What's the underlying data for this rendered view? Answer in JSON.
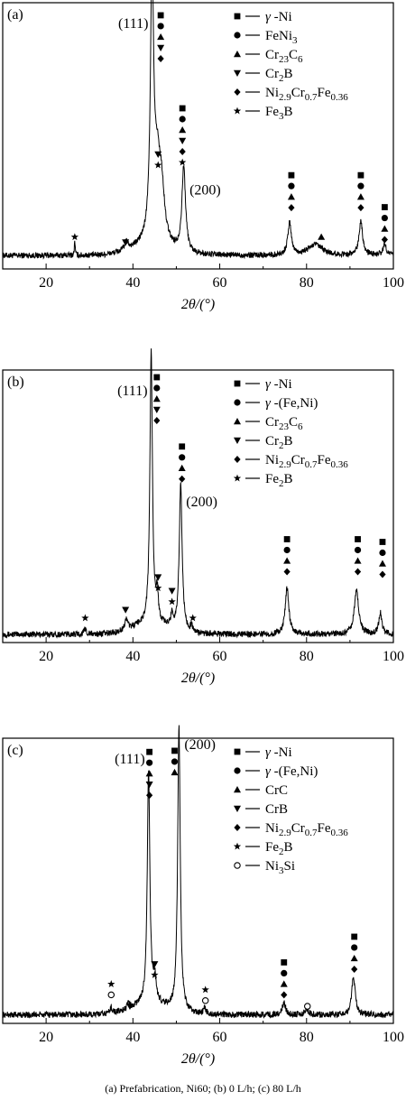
{
  "caption": "(a)  Prefabrication,  Ni60; (b) 0  L/h; (c) 80 L/h",
  "chart_data": [
    {
      "panel_label": "(a)",
      "type": "line",
      "xlabel": "2θ/(°)",
      "xlim": [
        10,
        100
      ],
      "xticks": [
        20,
        40,
        60,
        80,
        100
      ],
      "y_ticks_shown": false,
      "legend_position": "top-right",
      "legend": [
        {
          "marker": "filled-square",
          "label": "γ -Ni"
        },
        {
          "marker": "filled-circle",
          "label": "FeNi3"
        },
        {
          "marker": "filled-triangle-up",
          "label": "Cr23C6"
        },
        {
          "marker": "filled-triangle-down",
          "label": "Cr2B"
        },
        {
          "marker": "filled-diamond",
          "label": "Ni2.9Cr0.7Fe0.36"
        },
        {
          "marker": "filled-star",
          "label": "Fe3B"
        }
      ],
      "peak_labels": [
        {
          "text": "(111)",
          "x": 44.4
        },
        {
          "text": "(200)",
          "x": 51.8
        }
      ],
      "baseline": 0.05,
      "peaks": [
        {
          "x": 26.6,
          "h": 0.06,
          "w": 0.1
        },
        {
          "x": 38.5,
          "h": 0.03,
          "w": 0.5
        },
        {
          "x": 44.4,
          "h": 1.0,
          "w": 0.45
        },
        {
          "x": 45.6,
          "h": 0.25,
          "w": 0.8
        },
        {
          "x": 46.6,
          "h": 0.18,
          "w": 0.8
        },
        {
          "x": 51.7,
          "h": 0.32,
          "w": 0.5
        },
        {
          "x": 76.1,
          "h": 0.12,
          "w": 0.5
        },
        {
          "x": 82.0,
          "h": 0.04,
          "w": 2.0
        },
        {
          "x": 92.5,
          "h": 0.13,
          "w": 0.5
        },
        {
          "x": 98.0,
          "h": 0.04,
          "w": 0.5
        }
      ],
      "markers": [
        {
          "x": 26.6,
          "y": 0.12,
          "symbols": [
            "filled-star"
          ]
        },
        {
          "x": 38.3,
          "y": 0.1,
          "symbols": [
            "filled-triangle-down"
          ]
        },
        {
          "x": 46.4,
          "y": 0.79,
          "symbols": [
            "filled-square",
            "filled-circle",
            "filled-triangle-up",
            "filled-triangle-down",
            "filled-diamond"
          ]
        },
        {
          "x": 45.8,
          "y": 0.39,
          "symbols": [
            "filled-triangle-down",
            "filled-star"
          ]
        },
        {
          "x": 51.4,
          "y": 0.4,
          "symbols": [
            "filled-square",
            "filled-circle",
            "filled-triangle-up",
            "filled-triangle-down",
            "filled-diamond",
            "filled-star"
          ]
        },
        {
          "x": 76.5,
          "y": 0.23,
          "symbols": [
            "filled-square",
            "filled-circle",
            "filled-triangle-up",
            "filled-diamond"
          ]
        },
        {
          "x": 83.4,
          "y": 0.12,
          "symbols": [
            "filled-triangle-up"
          ]
        },
        {
          "x": 92.5,
          "y": 0.23,
          "symbols": [
            "filled-square",
            "filled-circle",
            "filled-triangle-up",
            "filled-diamond"
          ]
        },
        {
          "x": 98.0,
          "y": 0.11,
          "symbols": [
            "filled-square",
            "filled-circle",
            "filled-triangle-up",
            "filled-diamond"
          ]
        }
      ]
    },
    {
      "panel_label": "(b)",
      "type": "line",
      "xlabel": "2θ/(°)",
      "xlim": [
        10,
        100
      ],
      "xticks": [
        20,
        40,
        60,
        80,
        100
      ],
      "y_ticks_shown": false,
      "legend_position": "top-right",
      "legend": [
        {
          "marker": "filled-square",
          "label": "γ -Ni"
        },
        {
          "marker": "filled-circle",
          "label": "γ -(Fe,Ni)"
        },
        {
          "marker": "filled-triangle-up",
          "label": "Cr23C6"
        },
        {
          "marker": "filled-triangle-down",
          "label": "Cr2B"
        },
        {
          "marker": "filled-diamond",
          "label": "Ni2.9Cr0.7Fe0.36"
        },
        {
          "marker": "filled-star",
          "label": "Fe2B"
        }
      ],
      "peak_labels": [
        {
          "text": "(111)",
          "x": 44.2
        },
        {
          "text": "(200)",
          "x": 51.0
        }
      ],
      "baseline": 0.03,
      "peaks": [
        {
          "x": 29.0,
          "h": 0.02,
          "w": 0.3
        },
        {
          "x": 38.5,
          "h": 0.04,
          "w": 0.4
        },
        {
          "x": 44.2,
          "h": 1.0,
          "w": 0.35
        },
        {
          "x": 45.6,
          "h": 0.1,
          "w": 0.3
        },
        {
          "x": 49.0,
          "h": 0.05,
          "w": 0.3
        },
        {
          "x": 51.0,
          "h": 0.54,
          "w": 0.4
        },
        {
          "x": 53.5,
          "h": 0.02,
          "w": 0.3
        },
        {
          "x": 75.5,
          "h": 0.17,
          "w": 0.5
        },
        {
          "x": 91.5,
          "h": 0.16,
          "w": 0.6
        },
        {
          "x": 97.0,
          "h": 0.08,
          "w": 0.4
        }
      ],
      "markers": [
        {
          "x": 29.0,
          "y": 0.09,
          "symbols": [
            "filled-star"
          ]
        },
        {
          "x": 38.3,
          "y": 0.12,
          "symbols": [
            "filled-triangle-down"
          ]
        },
        {
          "x": 45.5,
          "y": 0.84,
          "symbols": [
            "filled-square",
            "filled-circle",
            "filled-triangle-up",
            "filled-triangle-down",
            "filled-diamond"
          ]
        },
        {
          "x": 45.8,
          "y": 0.2,
          "symbols": [
            "filled-triangle-down",
            "filled-star"
          ]
        },
        {
          "x": 49.0,
          "y": 0.15,
          "symbols": [
            "filled-triangle-down",
            "filled-star"
          ]
        },
        {
          "x": 53.8,
          "y": 0.09,
          "symbols": [
            "filled-star"
          ]
        },
        {
          "x": 51.3,
          "y": 0.6,
          "symbols": [
            "filled-square",
            "filled-circle",
            "filled-triangle-up",
            "filled-diamond"
          ]
        },
        {
          "x": 75.5,
          "y": 0.26,
          "symbols": [
            "filled-square",
            "filled-circle",
            "filled-triangle-up",
            "filled-diamond"
          ]
        },
        {
          "x": 91.8,
          "y": 0.26,
          "symbols": [
            "filled-square",
            "filled-circle",
            "filled-triangle-up",
            "filled-diamond"
          ]
        },
        {
          "x": 97.5,
          "y": 0.25,
          "symbols": [
            "filled-square",
            "filled-circle",
            "filled-triangle-up",
            "filled-diamond"
          ]
        }
      ]
    },
    {
      "panel_label": "(c)",
      "type": "line",
      "xlabel": "2θ/(°)",
      "xlim": [
        10,
        100
      ],
      "xticks": [
        20,
        40,
        60,
        80,
        100
      ],
      "y_ticks_shown": false,
      "legend_position": "top-right",
      "legend": [
        {
          "marker": "filled-square",
          "label": "γ -Ni"
        },
        {
          "marker": "filled-circle",
          "label": "γ -(Fe,Ni)"
        },
        {
          "marker": "filled-triangle-up",
          "label": "CrC"
        },
        {
          "marker": "filled-triangle-down",
          "label": "CrB"
        },
        {
          "marker": "filled-diamond",
          "label": "Ni2.9Cr0.7Fe0.36"
        },
        {
          "marker": "filled-star",
          "label": "Fe2B"
        },
        {
          "marker": "open-circle",
          "label": "Ni3Si"
        }
      ],
      "peak_labels": [
        {
          "text": "(111)",
          "x": 43.6
        },
        {
          "text": "(200)",
          "x": 50.6
        }
      ],
      "baseline": 0.03,
      "peaks": [
        {
          "x": 35.0,
          "h": 0.02,
          "w": 0.4
        },
        {
          "x": 39.0,
          "h": 0.02,
          "w": 0.4
        },
        {
          "x": 43.6,
          "h": 0.82,
          "w": 0.35
        },
        {
          "x": 45.0,
          "h": 0.08,
          "w": 0.4
        },
        {
          "x": 50.6,
          "h": 1.0,
          "w": 0.35
        },
        {
          "x": 56.5,
          "h": 0.02,
          "w": 0.4
        },
        {
          "x": 74.8,
          "h": 0.04,
          "w": 0.5
        },
        {
          "x": 80.0,
          "h": 0.02,
          "w": 0.5
        },
        {
          "x": 90.8,
          "h": 0.13,
          "w": 0.5
        }
      ],
      "markers": [
        {
          "x": 35.0,
          "y": 0.1,
          "symbols": [
            "filled-star",
            "open-circle"
          ]
        },
        {
          "x": 39.3,
          "y": 0.06,
          "symbols": [
            "filled-triangle-down"
          ]
        },
        {
          "x": 43.8,
          "y": 0.8,
          "symbols": [
            "filled-square",
            "filled-circle",
            "filled-triangle-up",
            "filled-triangle-down",
            "filled-diamond"
          ]
        },
        {
          "x": 49.6,
          "y": 0.88,
          "symbols": [
            "filled-square",
            "filled-circle",
            "filled-triangle-up"
          ]
        },
        {
          "x": 45.0,
          "y": 0.17,
          "symbols": [
            "filled-triangle-down",
            "filled-star"
          ]
        },
        {
          "x": 56.7,
          "y": 0.08,
          "symbols": [
            "filled-star",
            "open-circle"
          ]
        },
        {
          "x": 74.8,
          "y": 0.1,
          "symbols": [
            "filled-square",
            "filled-circle",
            "filled-triangle-up",
            "filled-diamond"
          ]
        },
        {
          "x": 80.2,
          "y": 0.06,
          "symbols": [
            "open-circle"
          ]
        },
        {
          "x": 91.0,
          "y": 0.19,
          "symbols": [
            "filled-square",
            "filled-circle",
            "filled-triangle-up",
            "filled-diamond"
          ]
        }
      ]
    }
  ]
}
